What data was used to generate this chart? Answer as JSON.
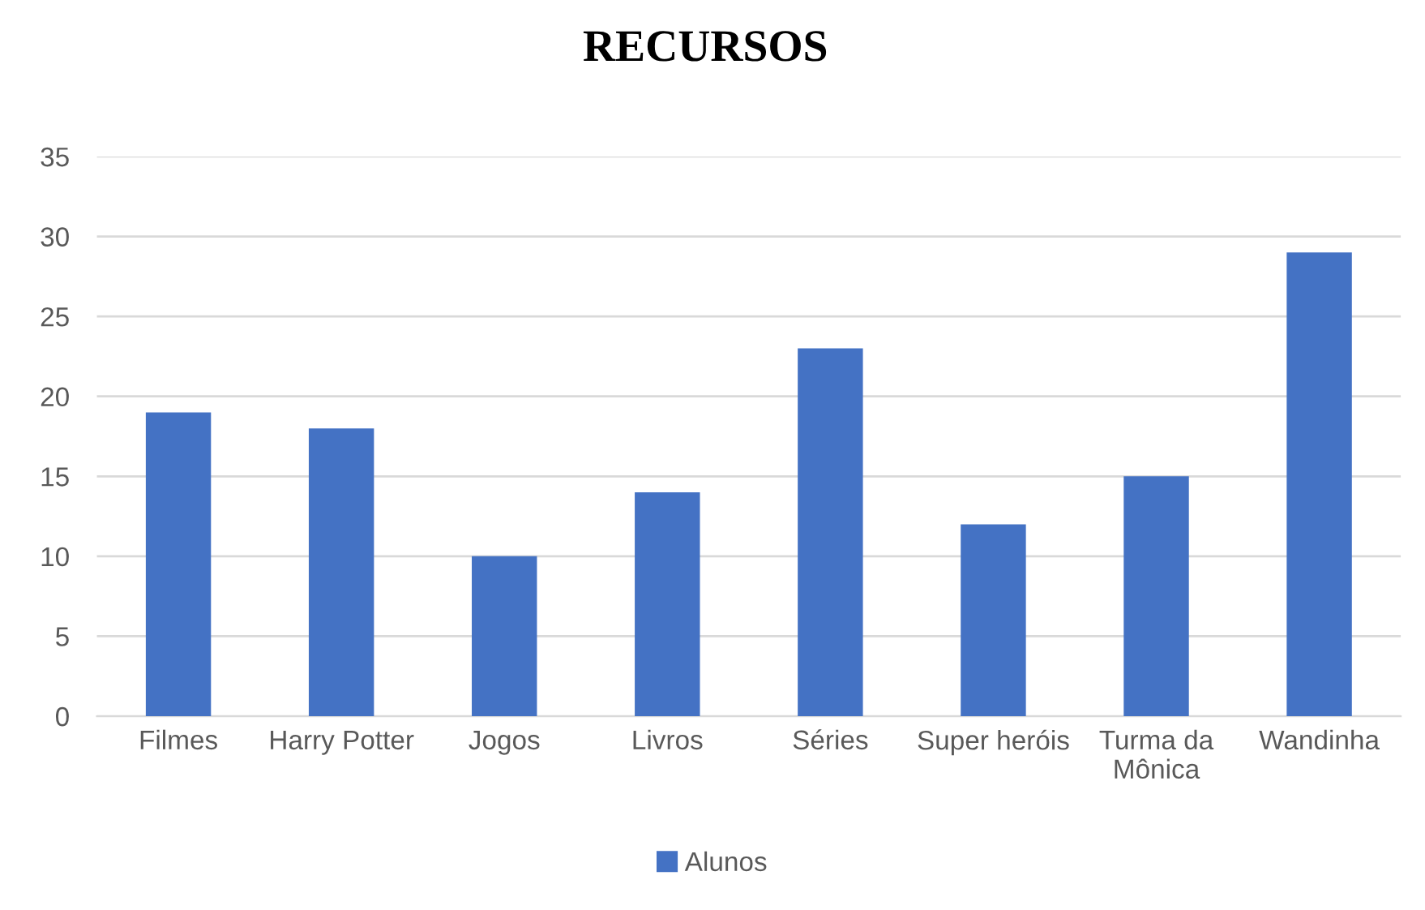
{
  "chart_data": {
    "type": "bar",
    "title": "RECURSOS",
    "categories": [
      "Filmes",
      "Harry Potter",
      "Jogos",
      "Livros",
      "Séries",
      "Super heróis",
      "Turma da Mônica",
      "Wandinha"
    ],
    "series": [
      {
        "name": "Alunos",
        "color": "#4472c4",
        "values": [
          19,
          18,
          10,
          14,
          23,
          12,
          15,
          29
        ]
      }
    ],
    "ylim": [
      0,
      35
    ],
    "yticks": [
      0,
      5,
      10,
      15,
      20,
      25,
      30,
      35
    ],
    "grid": "y",
    "legend": "bottom"
  }
}
